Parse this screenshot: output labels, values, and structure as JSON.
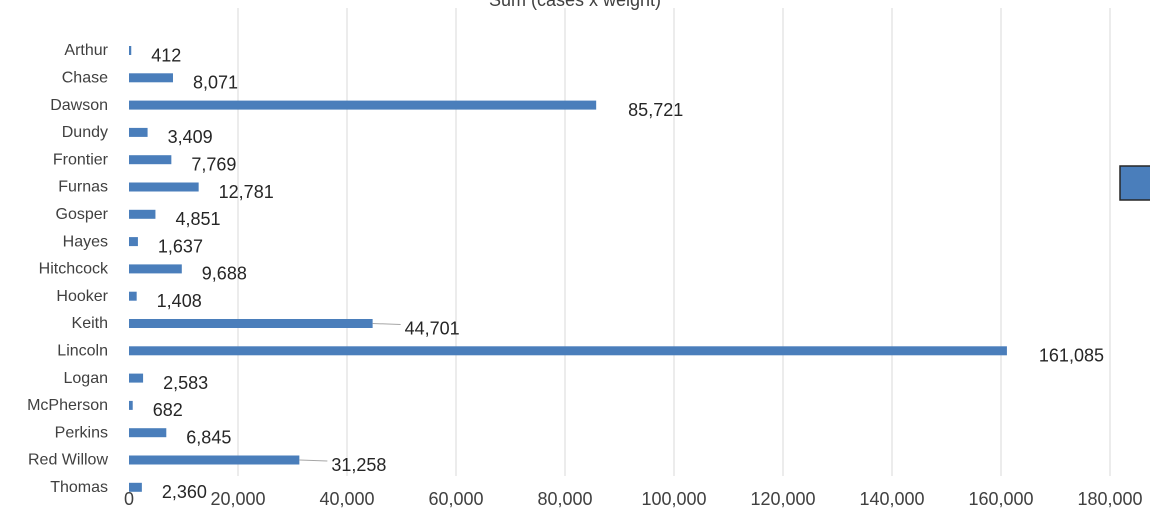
{
  "chart_data": {
    "type": "bar",
    "orientation": "horizontal",
    "title": "Sum (cases x weight)",
    "categories": [
      "Arthur",
      "Chase",
      "Dawson",
      "Dundy",
      "Frontier",
      "Furnas",
      "Gosper",
      "Hayes",
      "Hitchcock",
      "Hooker",
      "Keith",
      "Lincoln",
      "Logan",
      "McPherson",
      "Perkins",
      "Red Willow",
      "Thomas"
    ],
    "values": [
      412,
      8071,
      85721,
      3409,
      7769,
      12781,
      4851,
      1637,
      9688,
      1408,
      44701,
      161085,
      2583,
      682,
      6845,
      31258,
      2360
    ],
    "data_labels": [
      "412",
      "8,071",
      "85,721",
      "3,409",
      "7,769",
      "12,781",
      "4,851",
      "1,637",
      "9,688",
      "1,408",
      "44,701",
      "161,085",
      "2,583",
      "682",
      "6,845",
      "31,258",
      "2,360"
    ],
    "xlim": [
      0,
      180000
    ],
    "xticks": [
      0,
      20000,
      40000,
      60000,
      80000,
      100000,
      120000,
      140000,
      160000,
      180000
    ],
    "xtick_labels": [
      "0",
      "20,000",
      "40,000",
      "60,000",
      "80,000",
      "100,000",
      "120,000",
      "140,000",
      "160,000",
      "180,000"
    ],
    "grid": true,
    "legend": "right",
    "colors": {
      "bar": "#4a7ebb",
      "grid": "#d9d9d9",
      "leader": "#a6a6a6"
    }
  }
}
